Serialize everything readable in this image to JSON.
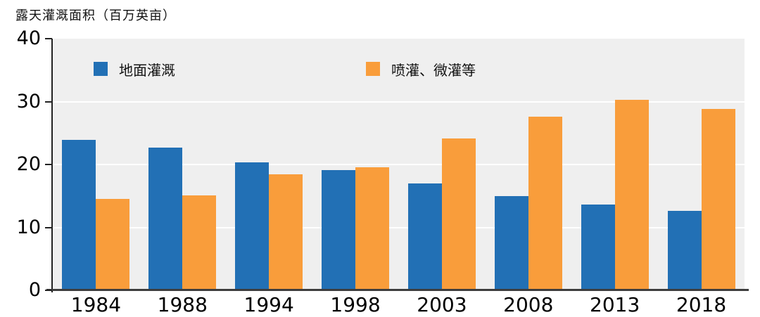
{
  "chart_data": {
    "type": "bar",
    "title": "露天灌溉面积（百万英亩）",
    "categories": [
      "1984",
      "1988",
      "1994",
      "1998",
      "2003",
      "2008",
      "2013",
      "2018"
    ],
    "series": [
      {
        "name": "地面灌溉",
        "color": "#2270b5",
        "values": [
          23.9,
          22.7,
          20.3,
          19.1,
          17.0,
          15.0,
          13.6,
          12.6
        ]
      },
      {
        "name": "喷灌、微灌等",
        "color": "#f99d3b",
        "values": [
          14.5,
          15.1,
          18.4,
          19.5,
          24.1,
          27.6,
          30.3,
          28.8
        ]
      }
    ],
    "xlabel": "",
    "ylabel": "露天灌溉面积（百万英亩）",
    "ylim": [
      0,
      40
    ],
    "yticks": [
      0,
      10,
      20,
      30,
      40
    ],
    "gridlines": [
      10,
      20,
      30
    ],
    "grid": "horizontal-white-on-gray-panel",
    "legend_position": "top-inside",
    "colors": {
      "panel_bg": "#efefef",
      "gridline": "#ffffff",
      "axis": "#3d3d3d",
      "text": "#000000"
    }
  }
}
